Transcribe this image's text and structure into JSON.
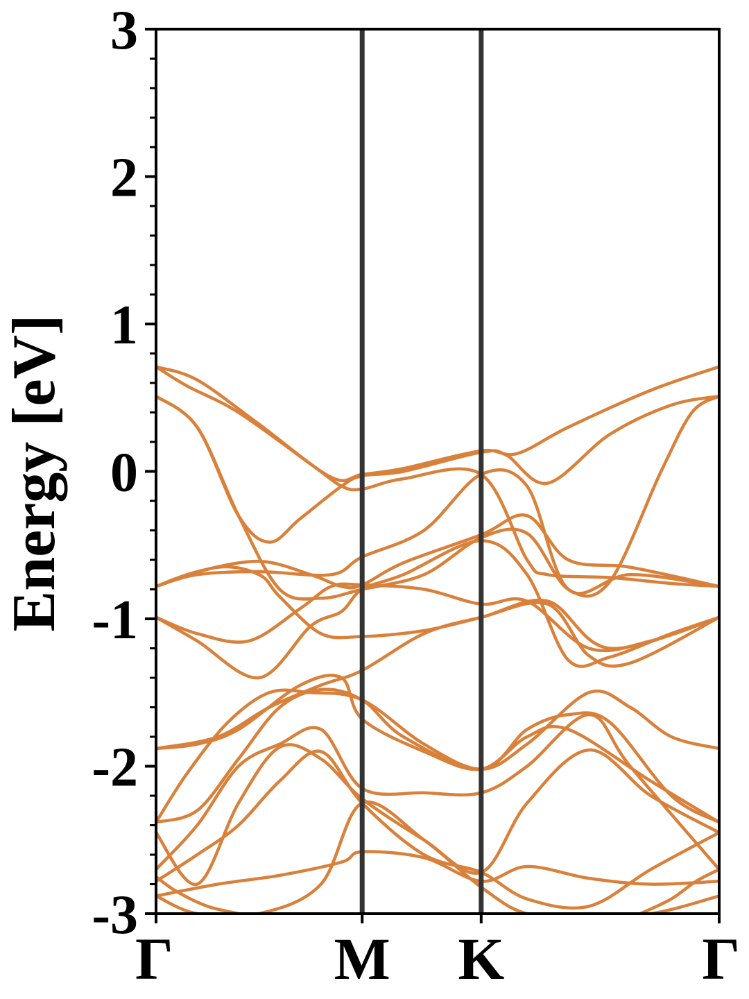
{
  "chart_data": {
    "type": "line",
    "title": "",
    "xlabel": "",
    "ylabel": "Energy [eV]",
    "ylim": [
      -3,
      3
    ],
    "x_ticks": [
      {
        "label": "Γ",
        "pos": 0.0
      },
      {
        "label": "M",
        "pos": 1.0
      },
      {
        "label": "K",
        "pos": 1.5774
      },
      {
        "label": "Γ",
        "pos": 2.7321
      }
    ],
    "y_ticks": [
      "3",
      "2",
      "1",
      "0",
      "-1",
      "-2",
      "-3"
    ],
    "y_tick_values": [
      3,
      2,
      1,
      0,
      -1,
      -2,
      -3
    ],
    "y_minor_step": 0.2,
    "grid": false,
    "band_color": "#d9813a",
    "divider_color": "#333333",
    "series": [
      {
        "x": [
          0,
          0.2,
          0.5,
          0.85,
          1.0,
          1.2,
          1.5774,
          1.75,
          2.0,
          2.4,
          2.7321
        ],
        "y": [
          0.71,
          0.62,
          0.32,
          -0.04,
          -0.02,
          0.02,
          0.14,
          0.12,
          0.3,
          0.55,
          0.71
        ]
      },
      {
        "x": [
          0,
          0.15,
          0.4,
          0.75,
          0.9,
          1.0,
          1.2,
          1.5774,
          1.8,
          1.9,
          2.2,
          2.5,
          2.7321
        ],
        "y": [
          0.71,
          0.58,
          0.4,
          0.05,
          -0.1,
          -0.12,
          -0.05,
          -0.02,
          -0.6,
          -0.7,
          -0.72,
          -0.76,
          -0.78
        ]
      },
      {
        "x": [
          0,
          0.2,
          0.4,
          0.55,
          0.7,
          0.9,
          1.0,
          1.2,
          1.5774,
          1.7,
          1.9,
          2.2,
          2.5,
          2.7321
        ],
        "y": [
          0.51,
          0.3,
          -0.3,
          -0.48,
          -0.32,
          -0.1,
          -0.03,
          0.0,
          0.13,
          0.11,
          -0.08,
          0.25,
          0.45,
          0.51
        ]
      },
      {
        "x": [
          0,
          0.2,
          0.4,
          0.6,
          0.8,
          1.0,
          1.3,
          1.5774,
          1.8,
          2.0,
          2.2,
          2.45,
          2.6,
          2.7321
        ],
        "y": [
          0.51,
          0.3,
          -0.3,
          -0.8,
          -0.86,
          -0.8,
          -0.7,
          -0.45,
          -0.42,
          -0.8,
          -0.75,
          0.0,
          0.4,
          0.51
        ]
      },
      {
        "x": [
          0,
          0.2,
          0.5,
          0.85,
          1.0,
          1.3,
          1.5774,
          1.8,
          2.0,
          2.3,
          2.7321
        ],
        "y": [
          -0.78,
          -0.7,
          -0.68,
          -0.7,
          -0.58,
          -0.4,
          -0.02,
          -0.1,
          -0.8,
          -0.7,
          -0.78
        ]
      },
      {
        "x": [
          0,
          0.2,
          0.5,
          0.75,
          0.9,
          1.0,
          1.2,
          1.5774,
          1.8,
          2.0,
          2.3,
          2.7321
        ],
        "y": [
          -0.78,
          -0.68,
          -0.61,
          -0.7,
          -0.78,
          -0.77,
          -0.62,
          -0.43,
          -0.3,
          -0.6,
          -0.65,
          -0.78
        ]
      },
      {
        "x": [
          0,
          0.2,
          0.45,
          0.7,
          0.85,
          1.0,
          1.3,
          1.5774,
          1.8,
          2.1,
          2.4,
          2.7321
        ],
        "y": [
          -0.99,
          -1.1,
          -1.15,
          -0.93,
          -0.78,
          -0.77,
          -0.8,
          -0.9,
          -0.88,
          -1.2,
          -1.15,
          -0.99
        ]
      },
      {
        "x": [
          0,
          0.2,
          0.5,
          0.75,
          0.9,
          1.0,
          1.2,
          1.5774,
          1.8,
          2.0,
          2.2,
          2.5,
          2.7321
        ],
        "y": [
          -0.99,
          -1.15,
          -1.4,
          -1.05,
          -0.95,
          -0.8,
          -0.7,
          -0.47,
          -0.7,
          -1.28,
          -1.26,
          -1.1,
          -0.99
        ]
      },
      {
        "x": [
          0,
          0.3,
          0.5,
          0.6,
          0.8,
          1.0,
          1.3,
          1.5774,
          1.9,
          2.2,
          2.7321
        ],
        "y": [
          -0.78,
          -0.65,
          -0.7,
          -0.85,
          -1.1,
          -1.12,
          -1.08,
          -0.99,
          -0.88,
          -1.2,
          -0.99
        ]
      },
      {
        "x": [
          0,
          0.3,
          0.55,
          0.8,
          1.0,
          1.3,
          1.5774,
          1.9,
          2.1,
          2.3,
          2.7321
        ],
        "y": [
          -1.88,
          -1.8,
          -1.6,
          -1.45,
          -1.35,
          -1.1,
          -0.99,
          -0.9,
          -1.25,
          -1.3,
          -0.99
        ]
      },
      {
        "x": [
          0,
          0.15,
          0.35,
          0.55,
          0.75,
          1.0,
          1.3,
          1.5774,
          1.8,
          2.1,
          2.3,
          2.5,
          2.7321
        ],
        "y": [
          -2.38,
          -2.05,
          -1.7,
          -1.5,
          -1.5,
          -1.55,
          -1.85,
          -2.02,
          -1.85,
          -1.5,
          -1.6,
          -1.8,
          -1.88
        ]
      },
      {
        "x": [
          0,
          0.2,
          0.4,
          0.7,
          0.9,
          1.0,
          1.3,
          1.5774,
          1.8,
          2.0,
          2.4,
          2.7321
        ],
        "y": [
          -1.88,
          -1.85,
          -1.75,
          -1.45,
          -1.4,
          -1.68,
          -1.9,
          -2.02,
          -1.8,
          -1.75,
          -2.1,
          -2.38
        ]
      },
      {
        "x": [
          0,
          0.2,
          0.4,
          0.6,
          0.8,
          1.0,
          1.2,
          1.5774,
          1.8,
          2.0,
          2.2,
          2.5,
          2.7321
        ],
        "y": [
          -2.38,
          -2.3,
          -1.95,
          -1.6,
          -1.48,
          -1.55,
          -1.8,
          -2.02,
          -1.75,
          -1.65,
          -1.7,
          -2.2,
          -2.38
        ]
      },
      {
        "x": [
          0,
          0.2,
          0.4,
          0.6,
          0.8,
          1.0,
          1.3,
          1.5774,
          1.8,
          2.1,
          2.3,
          2.7321
        ],
        "y": [
          -2.7,
          -2.4,
          -2.0,
          -1.85,
          -1.75,
          -2.15,
          -2.18,
          -2.18,
          -2.0,
          -1.65,
          -2.0,
          -2.7
        ]
      },
      {
        "x": [
          0,
          0.2,
          0.4,
          0.6,
          0.8,
          1.0,
          1.3,
          1.5774,
          1.8,
          2.1,
          2.4,
          2.7321
        ],
        "y": [
          -2.45,
          -2.8,
          -2.25,
          -1.87,
          -1.95,
          -2.22,
          -2.5,
          -2.72,
          -2.25,
          -1.89,
          -2.2,
          -2.45
        ]
      },
      {
        "x": [
          0,
          0.2,
          0.4,
          0.6,
          0.8,
          1.0,
          1.3,
          1.5774,
          1.8,
          2.1,
          2.4,
          2.7321
        ],
        "y": [
          -2.78,
          -2.6,
          -2.4,
          -2.1,
          -1.9,
          -2.25,
          -2.6,
          -2.72,
          -2.9,
          -2.95,
          -2.7,
          -2.45
        ]
      },
      {
        "x": [
          0,
          0.3,
          0.6,
          0.9,
          1.0,
          1.3,
          1.5774,
          1.8,
          2.1,
          2.4,
          2.7321
        ],
        "y": [
          -2.88,
          -2.8,
          -2.74,
          -2.65,
          -2.58,
          -2.62,
          -2.78,
          -2.68,
          -2.76,
          -2.8,
          -2.78
        ]
      },
      {
        "x": [
          0,
          0.2,
          0.5,
          0.8,
          1.0,
          1.3,
          1.5774,
          1.8,
          2.1,
          2.4,
          2.7321
        ],
        "y": [
          -2.88,
          -3.0,
          -3.0,
          -2.8,
          -2.25,
          -2.5,
          -2.82,
          -3.0,
          -3.0,
          -3.0,
          -2.88
        ]
      },
      {
        "x": [
          0,
          0.1,
          0.25,
          0.4
        ],
        "y": [
          -2.75,
          -2.85,
          -2.95,
          -3.0
        ]
      },
      {
        "x": [
          2.35,
          2.5,
          2.62,
          2.7321
        ],
        "y": [
          -3.0,
          -2.9,
          -2.78,
          -2.7
        ]
      }
    ]
  }
}
